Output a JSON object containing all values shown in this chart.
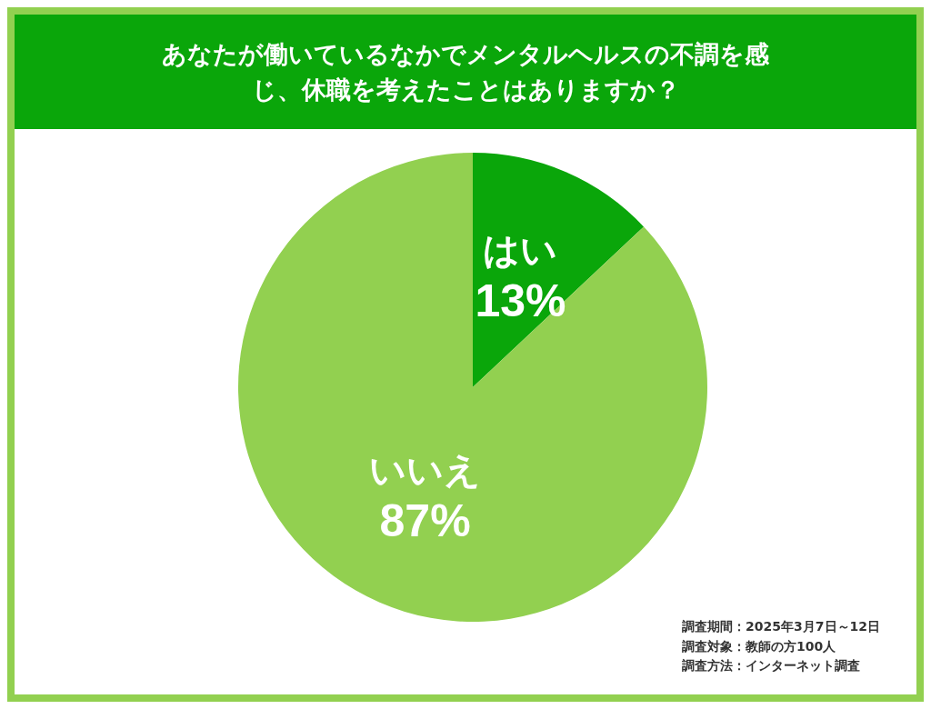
{
  "chart_data": {
    "type": "pie",
    "title": "あなたが働いているなかでメンタルヘルスの不調を感じ、休職を考えたことはありますか？",
    "categories": [
      "はい",
      "いいえ"
    ],
    "values": [
      13,
      87
    ],
    "value_labels": [
      "13%",
      "87%"
    ],
    "colors": [
      "#0aa60a",
      "#92d050"
    ],
    "legend": false,
    "annotations": [
      "調査期間：2025年3月7日～12日",
      "調査対象：教師の方100人",
      "調査方法：インターネット調査"
    ]
  }
}
